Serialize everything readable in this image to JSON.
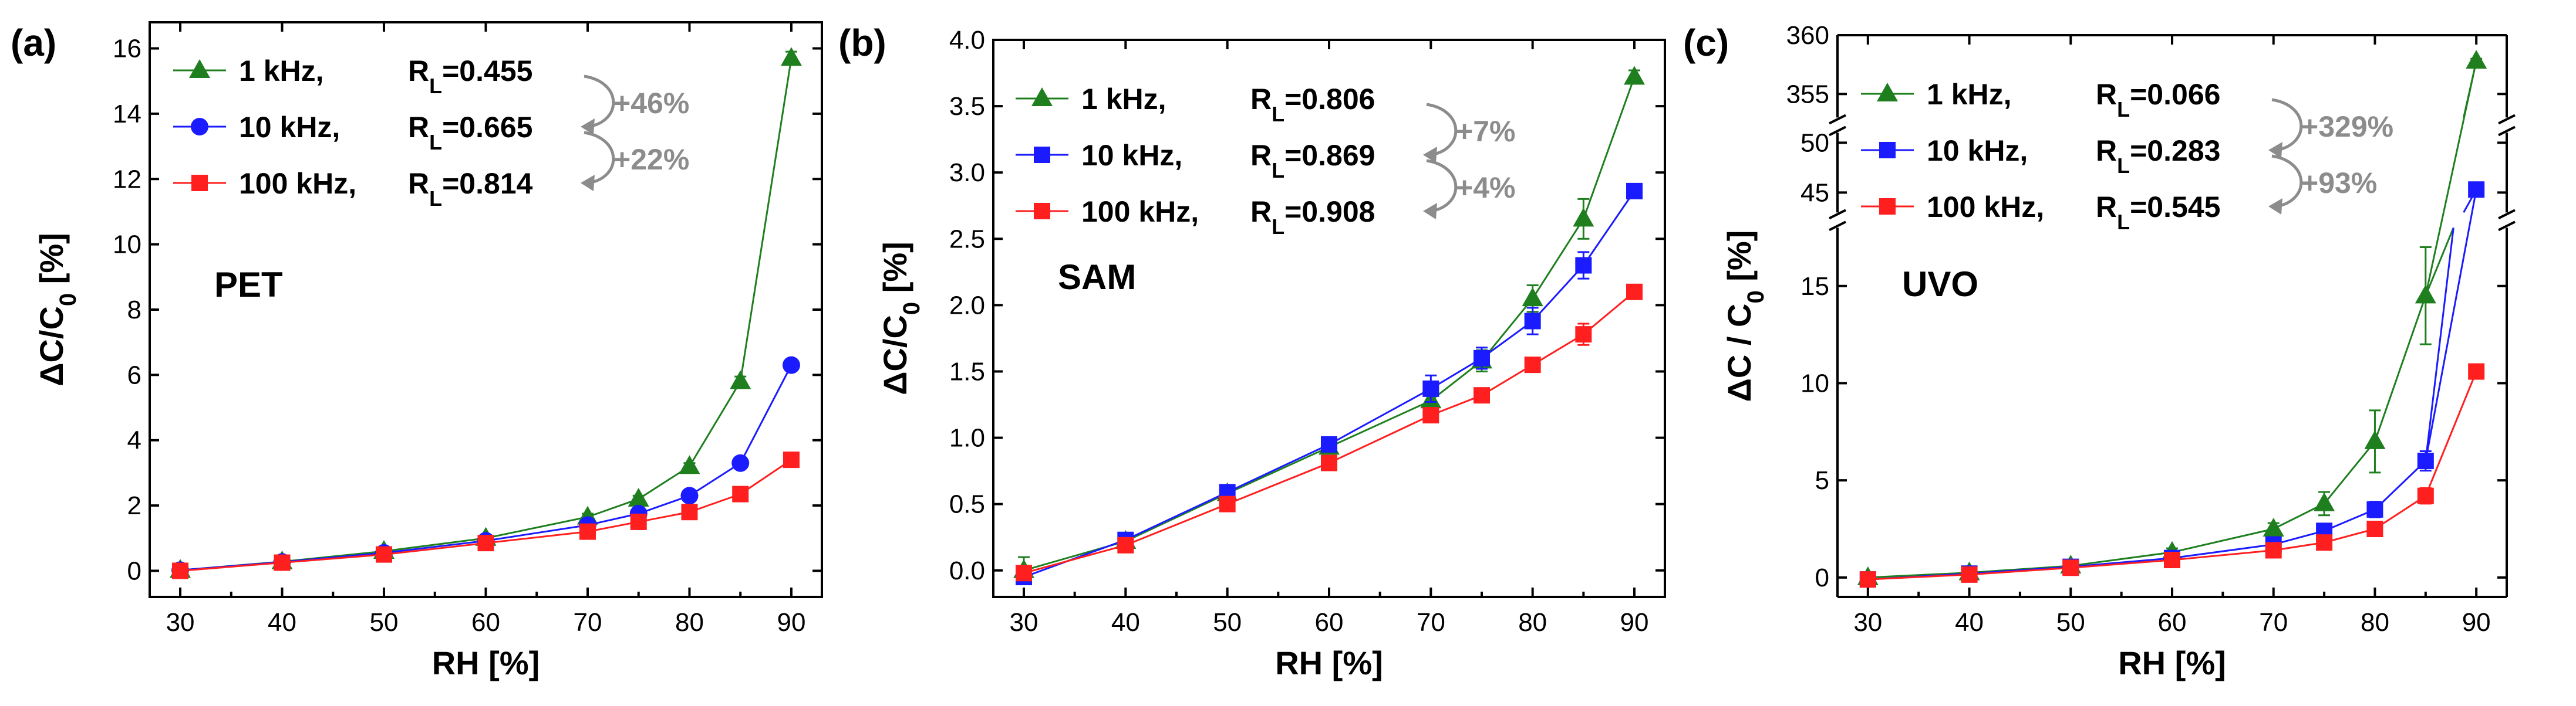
{
  "colors": {
    "green": "#1f7f1f",
    "blue": "#1b1bff",
    "red": "#ff1f1f",
    "gray": "#8c8c8c"
  },
  "chart_data": [
    {
      "type": "line",
      "panel_label": "(a)",
      "material": "PET",
      "xlabel": "RH [%]",
      "ylabel": "ΔC/C0 [%]",
      "xlim": [
        27,
        93
      ],
      "ylim": [
        -0.8,
        16.8
      ],
      "xticks": [
        30,
        40,
        50,
        60,
        70,
        80,
        90
      ],
      "xtick_labels": [
        "30",
        "40",
        "50",
        "60",
        "70",
        "80",
        "90"
      ],
      "yticks": [
        0,
        2,
        4,
        6,
        8,
        10,
        12,
        14,
        16
      ],
      "ytick_labels": [
        "0",
        "2",
        "4",
        "6",
        "8",
        "10",
        "12",
        "14",
        "16"
      ],
      "x": [
        30,
        40,
        50,
        60,
        70,
        75,
        80,
        85,
        90
      ],
      "series": [
        {
          "name": "1 kHz",
          "legend_freq": "1 kHz,",
          "legend_rl": "R",
          "rl_sub": "L",
          "rl_value": "=0.455",
          "marker": "triangle",
          "color": "#1f7f1f",
          "values": [
            0.02,
            0.28,
            0.6,
            1.0,
            1.65,
            2.2,
            3.2,
            5.8,
            15.7
          ],
          "errors": [
            0.05,
            0.05,
            0.05,
            0.08,
            0.1,
            0.1,
            0.1,
            0.15,
            0.2
          ]
        },
        {
          "name": "10 kHz",
          "legend_freq": "10 kHz,",
          "legend_rl": "R",
          "rl_sub": "L",
          "rl_value": "=0.665",
          "marker": "circle",
          "color": "#1b1bff",
          "values": [
            0.02,
            0.27,
            0.55,
            0.92,
            1.4,
            1.75,
            2.3,
            3.3,
            6.3
          ],
          "errors": [
            0.05,
            0.05,
            0.05,
            0.05,
            0.08,
            0.08,
            0.1,
            0.1,
            0.1
          ]
        },
        {
          "name": "100 kHz",
          "legend_freq": "100 kHz,",
          "legend_rl": "R",
          "rl_sub": "L",
          "rl_value": "=0.814",
          "marker": "square",
          "color": "#ff1f1f",
          "values": [
            0.0,
            0.25,
            0.5,
            0.85,
            1.2,
            1.5,
            1.8,
            2.35,
            3.4
          ],
          "errors": [
            0.05,
            0.05,
            0.05,
            0.05,
            0.05,
            0.05,
            0.08,
            0.08,
            0.1
          ]
        }
      ],
      "improvements": [
        "+46%",
        "+22%"
      ]
    },
    {
      "type": "line",
      "panel_label": "(b)",
      "material": "SAM",
      "xlabel": "RH [%]",
      "ylabel": "ΔC/C0 [%]",
      "xlim": [
        27,
        93
      ],
      "ylim": [
        -0.2,
        4.0
      ],
      "xticks": [
        30,
        40,
        50,
        60,
        70,
        80,
        90
      ],
      "xtick_labels": [
        "30",
        "40",
        "50",
        "60",
        "70",
        "80",
        "90"
      ],
      "yticks": [
        0,
        0.5,
        1.0,
        1.5,
        2.0,
        2.5,
        3.0,
        3.5,
        4.0
      ],
      "ytick_labels": [
        "0.0",
        "0.5",
        "1.0",
        "1.5",
        "2.0",
        "2.5",
        "3.0",
        "3.5",
        "4.0"
      ],
      "x": [
        30,
        40,
        50,
        60,
        70,
        75,
        80,
        85,
        90
      ],
      "series": [
        {
          "name": "1 kHz",
          "legend_freq": "1 kHz,",
          "legend_rl": "R",
          "rl_sub": "L",
          "rl_value": "=0.806",
          "marker": "triangle",
          "color": "#1f7f1f",
          "values": [
            0.0,
            0.22,
            0.58,
            0.93,
            1.28,
            1.58,
            2.05,
            2.65,
            3.72
          ],
          "errors": [
            0.1,
            0.03,
            0.05,
            0.05,
            0.05,
            0.08,
            0.1,
            0.15,
            0.05
          ]
        },
        {
          "name": "10 kHz",
          "legend_freq": "10 kHz,",
          "legend_rl": "R",
          "rl_sub": "L",
          "rl_value": "=0.869",
          "marker": "square",
          "color": "#1b1bff",
          "values": [
            -0.05,
            0.23,
            0.59,
            0.95,
            1.37,
            1.6,
            1.88,
            2.3,
            2.86
          ],
          "errors": [
            0.05,
            0.03,
            0.05,
            0.05,
            0.1,
            0.08,
            0.1,
            0.1,
            0.05
          ]
        },
        {
          "name": "100 kHz",
          "legend_freq": "100 kHz,",
          "legend_rl": "R",
          "rl_sub": "L",
          "rl_value": "=0.908",
          "marker": "square",
          "color": "#ff1f1f",
          "values": [
            -0.02,
            0.19,
            0.5,
            0.81,
            1.17,
            1.32,
            1.55,
            1.78,
            2.1
          ],
          "errors": [
            0.05,
            0.03,
            0.04,
            0.05,
            0.05,
            0.05,
            0.05,
            0.08,
            0.03
          ]
        }
      ],
      "improvements": [
        "+7%",
        "+4%"
      ]
    },
    {
      "type": "line",
      "panel_label": "(c)",
      "material": "UVO",
      "xlabel": "RH [%]",
      "ylabel": "ΔC / C0 [%]",
      "xlim": [
        27,
        93
      ],
      "axis_break": true,
      "segments": [
        {
          "range": [
            -1,
            18
          ],
          "ticks": [
            0,
            5,
            10,
            15
          ],
          "tick_labels": [
            "0",
            "5",
            "10",
            "15"
          ]
        },
        {
          "range": [
            43,
            51
          ],
          "ticks": [
            45,
            50
          ],
          "tick_labels": [
            "45",
            "50"
          ]
        },
        {
          "range": [
            353,
            360
          ],
          "ticks": [
            355,
            360
          ],
          "tick_labels": [
            "355",
            "360"
          ]
        }
      ],
      "xticks": [
        30,
        40,
        50,
        60,
        70,
        80,
        90
      ],
      "xtick_labels": [
        "30",
        "40",
        "50",
        "60",
        "70",
        "80",
        "90"
      ],
      "x": [
        30,
        40,
        50,
        60,
        70,
        75,
        80,
        85,
        90
      ],
      "series": [
        {
          "name": "1 kHz",
          "legend_freq": "1 kHz,",
          "legend_rl": "R",
          "rl_sub": "L",
          "rl_value": "=0.066",
          "marker": "triangle",
          "color": "#1f7f1f",
          "values": [
            0.0,
            0.25,
            0.6,
            1.3,
            2.5,
            3.8,
            7.0,
            14.5,
            357.8
          ],
          "errors": [
            0.1,
            0.1,
            0.1,
            0.2,
            0.3,
            0.6,
            1.6,
            2.5,
            0.2
          ]
        },
        {
          "name": "10 kHz",
          "legend_freq": "10 kHz,",
          "legend_rl": "R",
          "rl_sub": "L",
          "rl_value": "=0.283",
          "marker": "square",
          "color": "#1b1bff",
          "values": [
            -0.1,
            0.2,
            0.55,
            1.0,
            1.7,
            2.4,
            3.5,
            6.0,
            45.3
          ],
          "errors": [
            0.1,
            0.1,
            0.1,
            0.1,
            0.2,
            0.3,
            0.4,
            0.5,
            0.2
          ]
        },
        {
          "name": "100 kHz",
          "legend_freq": "100 kHz,",
          "legend_rl": "R",
          "rl_sub": "L",
          "rl_value": "=0.545",
          "marker": "square",
          "color": "#ff1f1f",
          "values": [
            -0.1,
            0.15,
            0.5,
            0.9,
            1.4,
            1.8,
            2.5,
            4.2,
            10.6
          ],
          "errors": [
            0.1,
            0.1,
            0.1,
            0.1,
            0.15,
            0.2,
            0.3,
            0.4,
            0.2
          ]
        }
      ],
      "improvements": [
        "+329%",
        "+93%"
      ]
    }
  ]
}
